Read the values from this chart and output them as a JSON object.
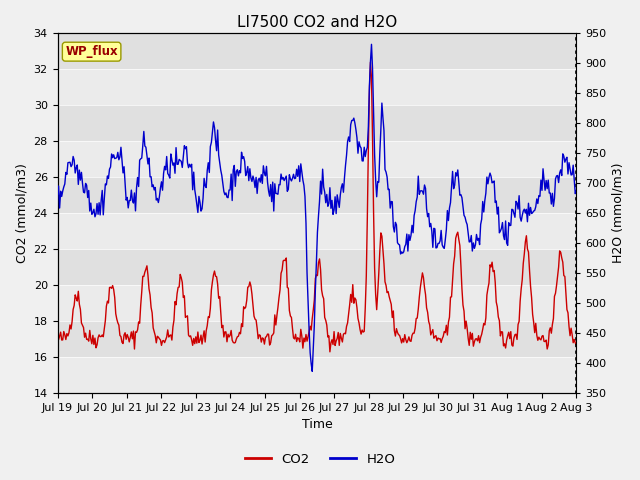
{
  "title": "LI7500 CO2 and H2O",
  "xlabel": "Time",
  "ylabel_left": "CO2 (mmol/m3)",
  "ylabel_right": "H2O (mmol/m3)",
  "ylim_left": [
    14,
    34
  ],
  "ylim_right": [
    350,
    950
  ],
  "yticks_left": [
    14,
    16,
    18,
    20,
    22,
    24,
    26,
    28,
    30,
    32,
    34
  ],
  "yticks_right": [
    350,
    400,
    450,
    500,
    550,
    600,
    650,
    700,
    750,
    800,
    850,
    900,
    950
  ],
  "xtick_labels": [
    "Jul 19",
    "Jul 20",
    "Jul 21",
    "Jul 22",
    "Jul 23",
    "Jul 24",
    "Jul 25",
    "Jul 26",
    "Jul 27",
    "Jul 28",
    "Jul 29",
    "Jul 30",
    "Jul 31",
    "Aug 1",
    "Aug 2",
    "Aug 3"
  ],
  "co2_color": "#cc0000",
  "h2o_color": "#0000cc",
  "fig_bg_color": "#f0f0f0",
  "plot_bg_color": "#e0e0e0",
  "band_light_color": "#ebebeb",
  "band_dark_color": "#d8d8d8",
  "wp_flux_bg": "#ffff99",
  "wp_flux_fg": "#990000",
  "wp_flux_edge": "#999900",
  "legend_co2": "CO2",
  "legend_h2o": "H2O",
  "title_fontsize": 11,
  "axis_fontsize": 9,
  "tick_fontsize": 8,
  "n_points": 500
}
